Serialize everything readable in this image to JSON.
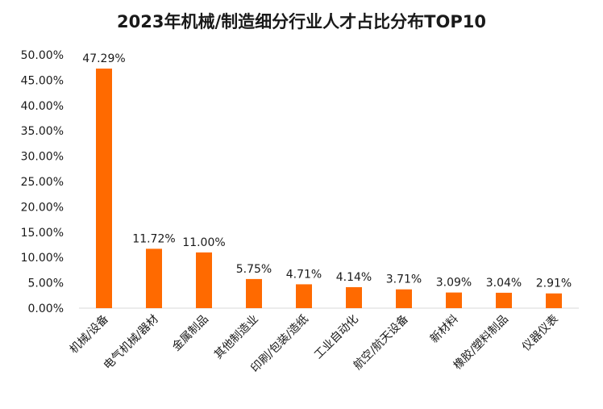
{
  "chart_data": {
    "type": "bar",
    "title": "2023年机械/制造细分行业人才占比分布TOP10",
    "categories": [
      "机械/设备",
      "电气机械/器材",
      "金属制品",
      "其他制造业",
      "印刷/包装/造纸",
      "工业自动化",
      "航空/航天设备",
      "新材料",
      "橡胶/塑料制品",
      "仪器仪表"
    ],
    "values": [
      47.29,
      11.72,
      11.0,
      5.75,
      4.71,
      4.14,
      3.71,
      3.09,
      3.04,
      2.91
    ],
    "data_labels": [
      "47.29%",
      "11.72%",
      "11.00%",
      "5.75%",
      "4.71%",
      "4.14%",
      "3.71%",
      "3.09%",
      "3.04%",
      "2.91%"
    ],
    "y_ticks": [
      0,
      5,
      10,
      15,
      20,
      25,
      30,
      35,
      40,
      45,
      50
    ],
    "y_tick_labels": [
      "0.00%",
      "5.00%",
      "10.00%",
      "15.00%",
      "20.00%",
      "25.00%",
      "30.00%",
      "35.00%",
      "40.00%",
      "45.00%",
      "50.00%"
    ],
    "ylim": [
      0,
      50
    ],
    "xlabel": "",
    "ylabel": "",
    "grid": false,
    "bar_color": "#FF6A00"
  }
}
